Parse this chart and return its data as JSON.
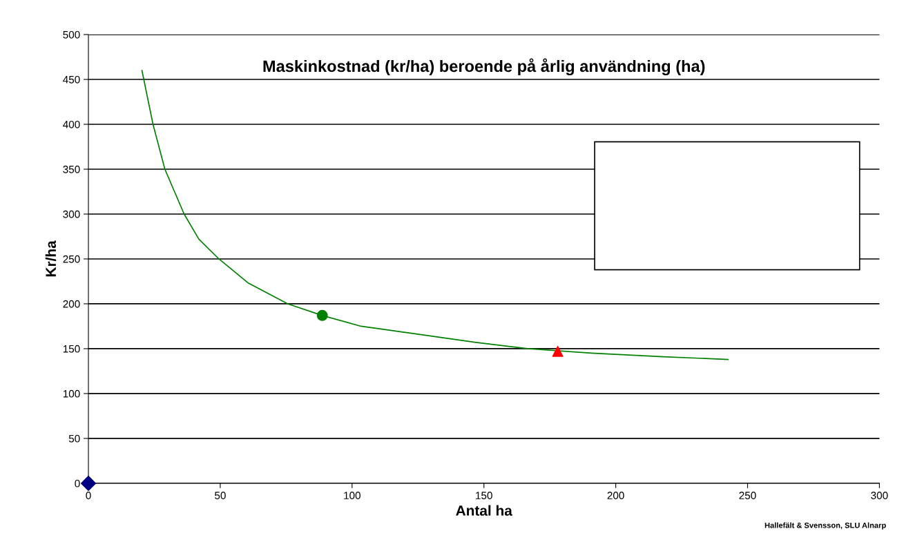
{
  "chart_data": {
    "type": "line",
    "title": "Maskinkostnad (kr/ha) beroende på årlig användning (ha)",
    "xlabel": "Antal ha",
    "ylabel": "Kr/ha",
    "annotations": [
      "Hallefält & Svensson, SLU Alnarp"
    ],
    "series": [
      {
        "color": "#008000",
        "marker": "none",
        "x": [
          20.3,
          24.5,
          29,
          36.3,
          41.9,
          49.5,
          60.7,
          75.6,
          88.7,
          103.4,
          125.3,
          147,
          166.8,
          190.8,
          218,
          242.6
        ],
        "values": [
          460,
          400,
          350,
          300,
          272,
          250,
          223,
          200,
          187,
          175,
          166,
          157,
          150,
          145,
          141,
          138
        ]
      },
      {
        "type": "scatter",
        "color": "#008000",
        "marker": "circle",
        "x": [
          88.7
        ],
        "values": [
          187
        ]
      },
      {
        "type": "scatter",
        "color": "#ff0000",
        "marker": "triangle",
        "x": [
          178
        ],
        "values": [
          147
        ]
      },
      {
        "type": "scatter",
        "color": "#000080",
        "marker": "diamond",
        "x": [
          0
        ],
        "values": [
          0
        ]
      }
    ],
    "xlim": [
      0,
      300
    ],
    "xticks": [
      0,
      50,
      100,
      150,
      200,
      250,
      300
    ],
    "ylim": [
      0,
      500
    ],
    "yticks": [
      0,
      50,
      100,
      150,
      200,
      250,
      300,
      350,
      400,
      450,
      500
    ],
    "grid": "y",
    "legend": false
  }
}
